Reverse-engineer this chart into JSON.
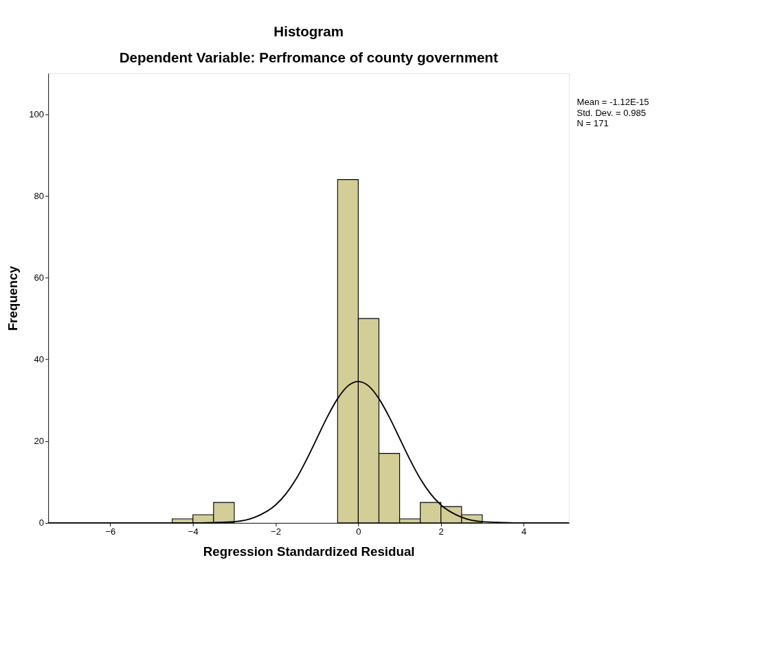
{
  "chart_data": {
    "type": "histogram",
    "title": "Histogram",
    "subtitle": "Dependent Variable: Perfromance of  county government",
    "xlabel": "Regression Standardized Residual",
    "ylabel": "Frequency",
    "bins": [
      -4.5,
      -4,
      -3.5,
      -3,
      -2.5,
      -2,
      -1.5,
      -1,
      -0.5,
      0,
      0.5,
      1,
      1.5,
      2,
      2.5,
      3
    ],
    "values": [
      1,
      2,
      5,
      0,
      0,
      0,
      0,
      0,
      84,
      50,
      17,
      1,
      5,
      4,
      2
    ],
    "color": "#d3ce97",
    "series": [
      {
        "type": "line",
        "color": "#000000",
        "x": [
          -7.5,
          -4,
          -3.5,
          -3,
          -2.5,
          -2,
          -1.75,
          -1.5,
          -1.25,
          -1,
          -0.75,
          -0.5,
          -0.25,
          0,
          0.25,
          0.5,
          0.75,
          1,
          1.25,
          1.5,
          1.75,
          2,
          2.5,
          3,
          3.5,
          4,
          5.1
        ],
        "values": [
          0,
          0,
          0.1,
          0.3,
          1.4,
          4.4,
          7.1,
          10.8,
          15.5,
          20.7,
          25.9,
          30.4,
          33.5,
          34.6,
          33.5,
          30.4,
          25.9,
          20.7,
          15.5,
          10.8,
          7.1,
          4.4,
          1.4,
          0.3,
          0.1,
          0,
          0
        ]
      }
    ],
    "xlim": [
      -7.5,
      5.1
    ],
    "xticks": [
      -6,
      -4,
      -2,
      0,
      2,
      4
    ],
    "ylim": [
      0,
      110
    ],
    "yticks": [
      0,
      20,
      40,
      60,
      80,
      100
    ],
    "grid": false,
    "annotations": [
      "Mean = -1.12E-15",
      "Std. Dev. = 0.985",
      "N = 171"
    ]
  }
}
